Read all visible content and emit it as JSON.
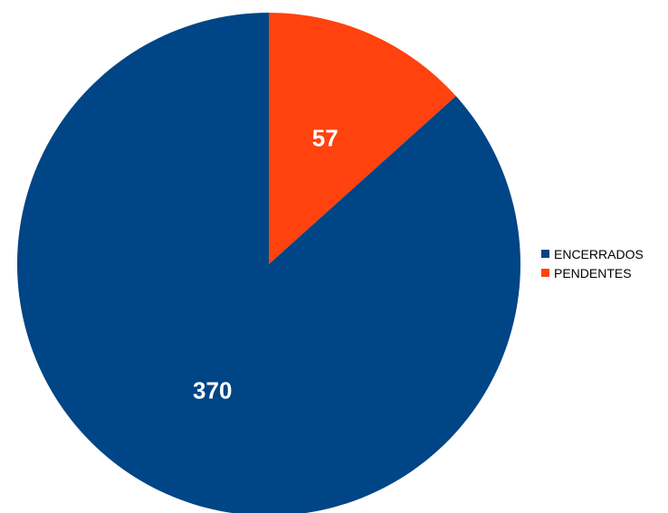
{
  "chart_data": {
    "type": "pie",
    "series": [
      {
        "name": "ENCERRADOS",
        "value": 370,
        "color": "#004586"
      },
      {
        "name": "PENDENTES",
        "value": 57,
        "color": "#ff420e"
      }
    ],
    "start_slice": "PENDENTES",
    "direction": "clockwise-from-top",
    "legend_position": "right"
  }
}
